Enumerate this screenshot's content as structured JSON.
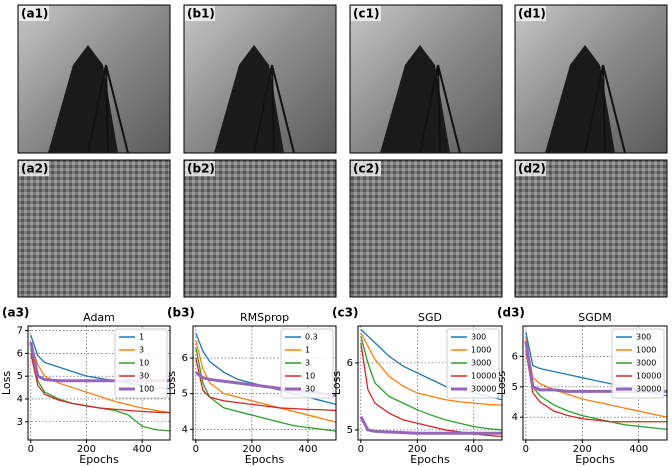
{
  "panels": [
    {
      "label": "(a1)"
    },
    {
      "label": "(b1)"
    },
    {
      "label": "(c1)"
    },
    {
      "label": "(d1)"
    },
    {
      "label": "(a2)"
    },
    {
      "label": "(b2)"
    },
    {
      "label": "(c2)"
    },
    {
      "label": "(d2)"
    }
  ],
  "chart_data": [
    {
      "type": "line",
      "panel_label": "(a3)",
      "title": "Adam",
      "x_label": "Epochs",
      "y_label": "Loss",
      "x": [
        0,
        25,
        50,
        100,
        150,
        200,
        250,
        300,
        350,
        400,
        450,
        500
      ],
      "xlim": [
        -10,
        500
      ],
      "xticks": [
        0,
        200,
        400
      ],
      "ylim": [
        2.2,
        7.2
      ],
      "yticks": [
        3,
        4,
        5,
        6,
        7
      ],
      "grid": true,
      "legend": "upper right",
      "series": [
        {
          "name": "1",
          "color": "#1f77b4",
          "values": [
            6.8,
            5.9,
            5.6,
            5.4,
            5.2,
            5.0,
            4.9,
            4.8,
            4.7,
            4.6,
            4.5,
            4.45
          ]
        },
        {
          "name": "3",
          "color": "#ff7f0e",
          "values": [
            6.4,
            5.5,
            5.0,
            4.7,
            4.5,
            4.3,
            4.1,
            3.9,
            3.75,
            3.6,
            3.5,
            3.4
          ]
        },
        {
          "name": "10",
          "color": "#2ca02c",
          "values": [
            6.2,
            4.8,
            4.3,
            4.0,
            3.8,
            3.7,
            3.6,
            3.5,
            3.3,
            2.8,
            2.65,
            2.6
          ]
        },
        {
          "name": "30",
          "color": "#d62728",
          "values": [
            6.0,
            4.6,
            4.2,
            3.95,
            3.8,
            3.7,
            3.6,
            3.55,
            3.5,
            3.45,
            3.42,
            3.4
          ]
        },
        {
          "name": "100",
          "color": "#9467bd",
          "values": [
            6.5,
            5.0,
            4.85,
            4.8,
            4.8,
            4.8,
            4.8,
            4.8,
            4.8,
            4.8,
            4.8,
            4.8
          ]
        }
      ]
    },
    {
      "type": "line",
      "panel_label": "(b3)",
      "title": "RMSprop",
      "x_label": "Epochs",
      "y_label": "Loss",
      "x": [
        0,
        25,
        50,
        100,
        150,
        200,
        250,
        300,
        350,
        400,
        450,
        500
      ],
      "xlim": [
        -10,
        500
      ],
      "xticks": [
        0,
        200,
        400
      ],
      "ylim": [
        3.7,
        6.9
      ],
      "yticks": [
        4,
        5,
        6
      ],
      "grid": true,
      "legend": "upper right",
      "series": [
        {
          "name": "0.3",
          "color": "#1f77b4",
          "values": [
            6.7,
            6.2,
            5.9,
            5.6,
            5.4,
            5.3,
            5.2,
            5.1,
            5.0,
            4.9,
            4.8,
            4.7
          ]
        },
        {
          "name": "1",
          "color": "#ff7f0e",
          "values": [
            6.5,
            5.7,
            5.3,
            5.0,
            4.9,
            4.8,
            4.7,
            4.6,
            4.5,
            4.4,
            4.3,
            4.2
          ]
        },
        {
          "name": "3",
          "color": "#2ca02c",
          "values": [
            6.3,
            5.3,
            4.9,
            4.6,
            4.5,
            4.4,
            4.3,
            4.2,
            4.1,
            4.05,
            4.0,
            3.95
          ]
        },
        {
          "name": "10",
          "color": "#d62728",
          "values": [
            6.0,
            5.1,
            4.9,
            4.8,
            4.75,
            4.7,
            4.65,
            4.6,
            4.58,
            4.56,
            4.55,
            4.53
          ]
        },
        {
          "name": "30",
          "color": "#9467bd",
          "values": [
            5.6,
            5.45,
            5.4,
            5.35,
            5.3,
            5.25,
            5.2,
            5.15,
            5.1,
            5.05,
            5.0,
            4.95
          ]
        }
      ]
    },
    {
      "type": "line",
      "panel_label": "(c3)",
      "title": "SGD",
      "x_label": "Epochs",
      "y_label": "Loss",
      "x": [
        0,
        25,
        50,
        100,
        150,
        200,
        250,
        300,
        350,
        400,
        450,
        500
      ],
      "xlim": [
        -10,
        500
      ],
      "xticks": [
        0,
        200,
        400
      ],
      "ylim": [
        4.85,
        6.55
      ],
      "yticks": [
        5,
        6
      ],
      "grid": true,
      "legend": "upper right",
      "series": [
        {
          "name": "300",
          "color": "#1f77b4",
          "values": [
            6.5,
            6.4,
            6.3,
            6.1,
            5.95,
            5.85,
            5.75,
            5.65,
            5.6,
            5.55,
            5.5,
            5.45
          ]
        },
        {
          "name": "1000",
          "color": "#ff7f0e",
          "values": [
            6.45,
            6.25,
            6.05,
            5.8,
            5.65,
            5.55,
            5.5,
            5.45,
            5.42,
            5.4,
            5.38,
            5.37
          ]
        },
        {
          "name": "3000",
          "color": "#2ca02c",
          "values": [
            6.4,
            6.0,
            5.7,
            5.5,
            5.4,
            5.3,
            5.22,
            5.15,
            5.1,
            5.05,
            5.02,
            5.0
          ]
        },
        {
          "name": "10000",
          "color": "#d62728",
          "values": [
            6.3,
            5.6,
            5.4,
            5.25,
            5.15,
            5.1,
            5.05,
            5.0,
            4.97,
            4.94,
            4.92,
            4.9
          ]
        },
        {
          "name": "30000",
          "color": "#9467bd",
          "values": [
            5.2,
            5.0,
            4.98,
            4.97,
            4.96,
            4.95,
            4.95,
            4.95,
            4.95,
            4.95,
            4.95,
            4.95
          ]
        }
      ]
    },
    {
      "type": "line",
      "panel_label": "(d3)",
      "title": "SGDM",
      "x_label": "Epochs",
      "y_label": "Loss",
      "x": [
        0,
        25,
        50,
        100,
        150,
        200,
        250,
        300,
        350,
        400,
        450,
        500
      ],
      "xlim": [
        -10,
        500
      ],
      "xticks": [
        0,
        200,
        400
      ],
      "ylim": [
        3.25,
        7
      ],
      "yticks": [
        4,
        5,
        6
      ],
      "grid": true,
      "legend": "upper right",
      "series": [
        {
          "name": "300",
          "color": "#1f77b4",
          "values": [
            6.8,
            5.7,
            5.6,
            5.5,
            5.4,
            5.3,
            5.2,
            5.1,
            5.0,
            4.9,
            4.8,
            4.7
          ]
        },
        {
          "name": "1000",
          "color": "#ff7f0e",
          "values": [
            6.6,
            5.3,
            5.1,
            4.9,
            4.75,
            4.6,
            4.5,
            4.4,
            4.3,
            4.2,
            4.1,
            4.0
          ]
        },
        {
          "name": "3000",
          "color": "#2ca02c",
          "values": [
            6.4,
            5.0,
            4.7,
            4.4,
            4.2,
            4.05,
            3.95,
            3.85,
            3.75,
            3.7,
            3.65,
            3.6
          ]
        },
        {
          "name": "10000",
          "color": "#d62728",
          "values": [
            6.2,
            4.8,
            4.5,
            4.2,
            4.05,
            3.95,
            3.9,
            3.85,
            3.85,
            3.85,
            3.85,
            3.85
          ]
        },
        {
          "name": "30000",
          "color": "#9467bd",
          "values": [
            6.5,
            5.0,
            4.9,
            4.9,
            4.85,
            4.85,
            4.85,
            4.85,
            4.85,
            4.85,
            4.85,
            4.85
          ]
        }
      ]
    }
  ]
}
